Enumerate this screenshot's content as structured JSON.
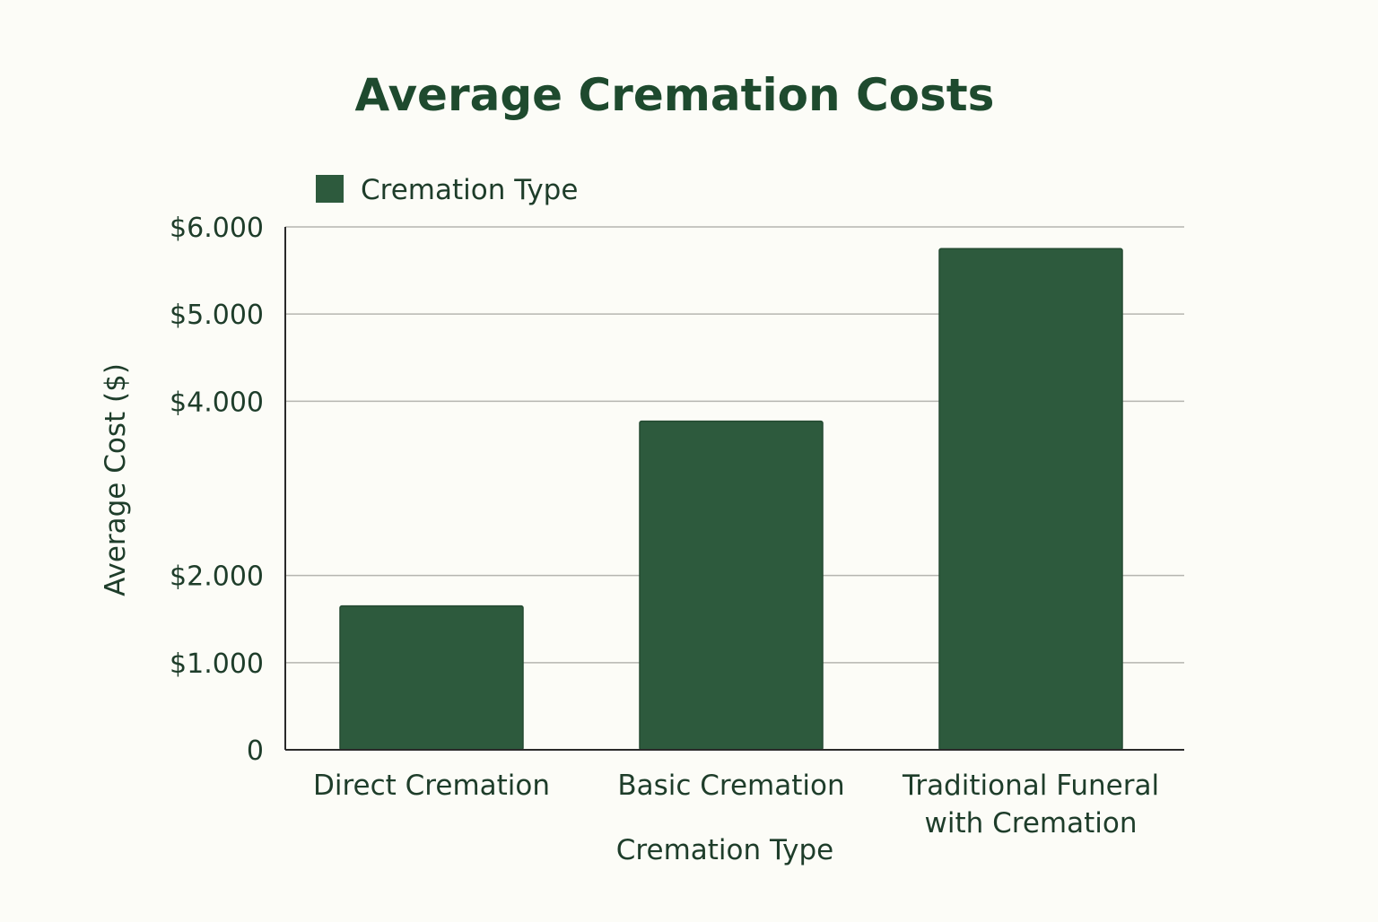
{
  "chart_data": {
    "type": "bar",
    "title": "Average Cremation Costs",
    "xlabel": "Cremation Type",
    "ylabel": "Average Cost ($)",
    "categories": [
      [
        "Direct Cremation"
      ],
      [
        "Basic Cremation"
      ],
      [
        "Traditional Funeral",
        "with Cremation"
      ]
    ],
    "series": [
      {
        "name": "Cremation Type",
        "values": [
          1650,
          3770,
          5750
        ],
        "color": "#2d5a3d"
      }
    ],
    "yticks": [
      {
        "value": 0,
        "label": "0"
      },
      {
        "value": 1000,
        "label": "$1.000"
      },
      {
        "value": 2000,
        "label": "$2.000"
      },
      {
        "value": 4000,
        "label": "$4.000"
      },
      {
        "value": 5000,
        "label": "$5.000"
      },
      {
        "value": 6000,
        "label": "$6.000"
      }
    ],
    "ylim": [
      0,
      6000
    ],
    "grid": true,
    "legend_position": "top-left"
  }
}
